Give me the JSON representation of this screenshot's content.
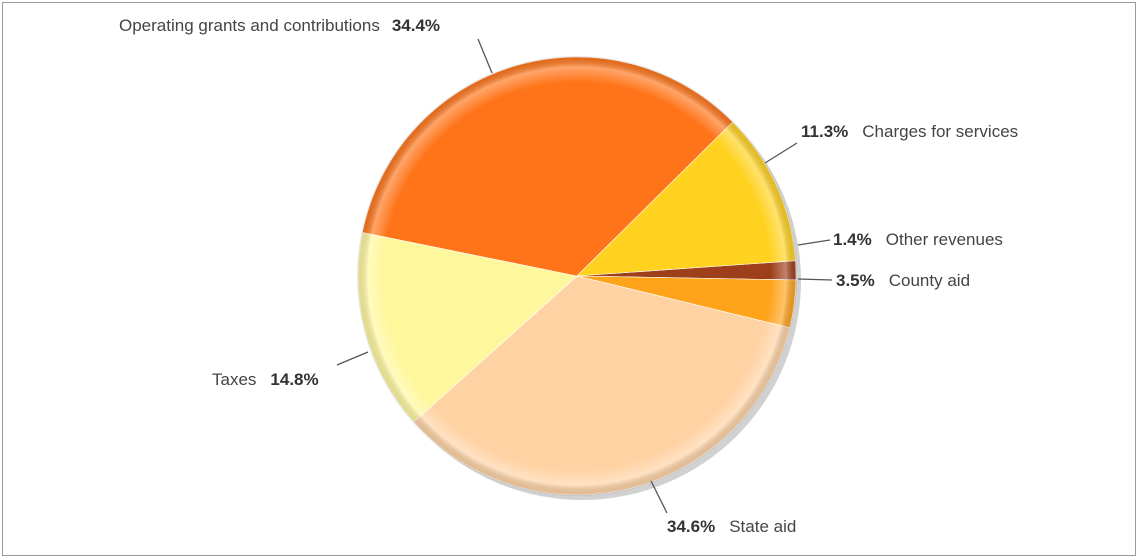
{
  "chart_data": {
    "type": "pie",
    "title": "",
    "slices": [
      {
        "name": "Other revenues",
        "value": 1.4,
        "label": "1.4%",
        "color": "#9e3f1c"
      },
      {
        "name": "County aid",
        "value": 3.5,
        "label": "3.5%",
        "color": "#ffa31a"
      },
      {
        "name": "State aid",
        "value": 34.6,
        "label": "34.6%",
        "color": "#ffd2a3"
      },
      {
        "name": "Taxes",
        "value": 14.8,
        "label": "14.8%",
        "color": "#fff79c"
      },
      {
        "name": "Operating grants and contributions",
        "value": 34.4,
        "label": "34.4%",
        "color": "#ff7418"
      },
      {
        "name": "Charges for services",
        "value": 11.3,
        "label": "11.3%",
        "color": "#ffd21f"
      }
    ],
    "start_angle_deg": -4,
    "direction": "clockwise-from-east",
    "legend": "none (labels next to slices)"
  }
}
